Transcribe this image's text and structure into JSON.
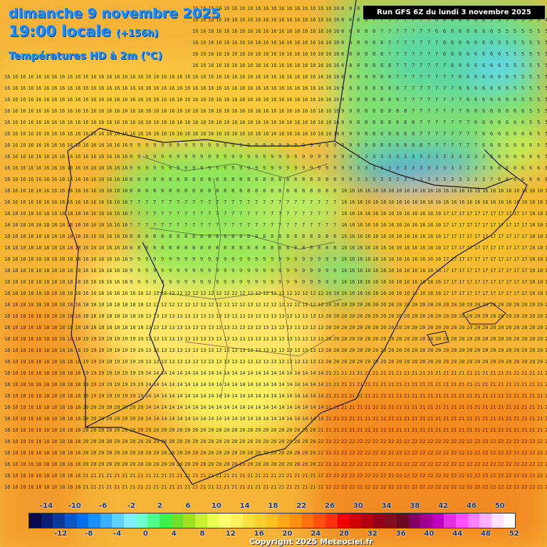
{
  "header": {
    "date": "dimanche 9 novembre 2025",
    "time": "19:00 locale",
    "lead": "(+156h)",
    "product": "Températures HD à 2m (°C)",
    "run": "Run GFS 6Z du lundi 3 novembre 2025"
  },
  "legend": {
    "top_ticks": [
      "-14",
      "-10",
      "-6",
      "-2",
      "2",
      "6",
      "10",
      "14",
      "18",
      "22",
      "26",
      "30",
      "34",
      "38",
      "42",
      "46",
      "50"
    ],
    "bottom_ticks": [
      "-12",
      "-8",
      "-4",
      "0",
      "4",
      "8",
      "12",
      "16",
      "20",
      "24",
      "28",
      "32",
      "36",
      "40",
      "44",
      "48",
      "52"
    ],
    "colors": [
      "#0a0a4a",
      "#0b1f70",
      "#0a3a9a",
      "#0a55c8",
      "#0070e8",
      "#1a90ff",
      "#3ab0ff",
      "#60d0ff",
      "#80eeff",
      "#70ffd0",
      "#50ff90",
      "#40f050",
      "#70e030",
      "#a0e020",
      "#c8f030",
      "#e8ff50",
      "#ffff70",
      "#fff060",
      "#ffe040",
      "#ffd030",
      "#ffc020",
      "#ffa818",
      "#ff9010",
      "#ff7010",
      "#ff5010",
      "#ff3010",
      "#f00000",
      "#d00000",
      "#b00010",
      "#900018",
      "#801020",
      "#6a0a20",
      "#800060",
      "#a00090",
      "#c000c0",
      "#e030e0",
      "#ff50ff",
      "#ff80ff",
      "#ffb0ff",
      "#ffe0ff",
      "#ffffff"
    ]
  },
  "copyright": "Copyright 2025 Meteociel.fr"
}
